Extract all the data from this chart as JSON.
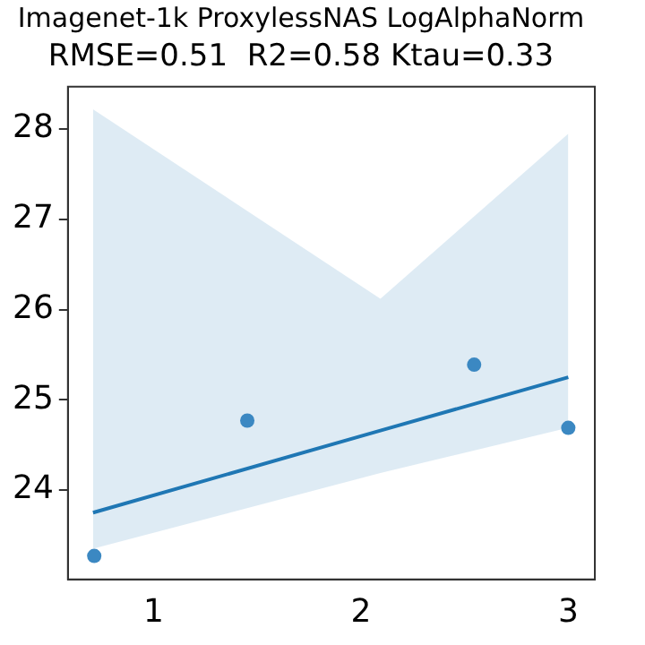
{
  "chart_data": {
    "type": "scatter",
    "title": "Imagenet-1k ProxylessNAS LogAlphaNorm",
    "subtitle": "RMSE=0.51  R2=0.58 Ktau=0.33",
    "xlim": [
      0.587,
      3.128
    ],
    "xticks": [
      1,
      2,
      3
    ],
    "ylim": [
      23.01,
      28.47
    ],
    "yticks": [
      24,
      25,
      26,
      27,
      28
    ],
    "grid": false,
    "legend": false,
    "series": [
      {
        "type": "scatter",
        "color": "#3b88c2",
        "marker": "circle",
        "x": [
          0.714,
          1.452,
          2.546,
          3.0
        ],
        "values": [
          23.27,
          24.77,
          25.39,
          24.69
        ]
      },
      {
        "type": "line",
        "color": "#1f77b4",
        "marker": "none",
        "x": [
          0.708,
          2.094,
          3.0
        ],
        "values": [
          23.75,
          24.66,
          25.25
        ],
        "lower": [
          23.35,
          24.19,
          24.69
        ],
        "upper": [
          28.22,
          26.12,
          27.95
        ]
      }
    ]
  }
}
